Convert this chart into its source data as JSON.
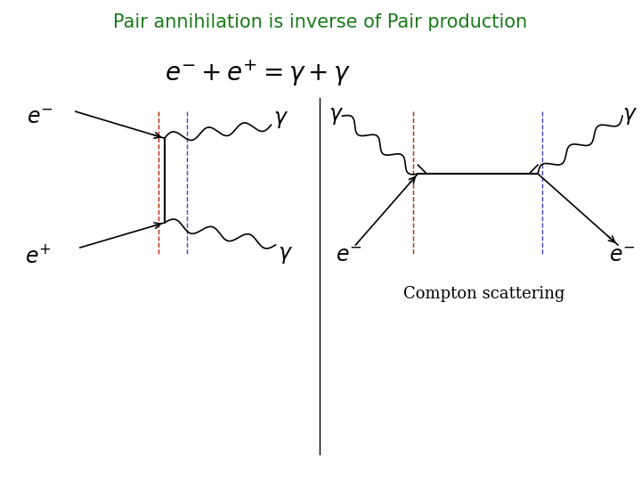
{
  "title": "Pair annihilation is inverse of Pair production",
  "title_color": "#1a7a1a",
  "title_fontsize": 15,
  "compton_label": "Compton scattering",
  "compton_fontsize": 13,
  "bg_color": "#ffffff",
  "line_color": "#000000",
  "red_dashed": "#bb2200",
  "blue_dashed": "#4444bb",
  "divider_color": "#000000"
}
